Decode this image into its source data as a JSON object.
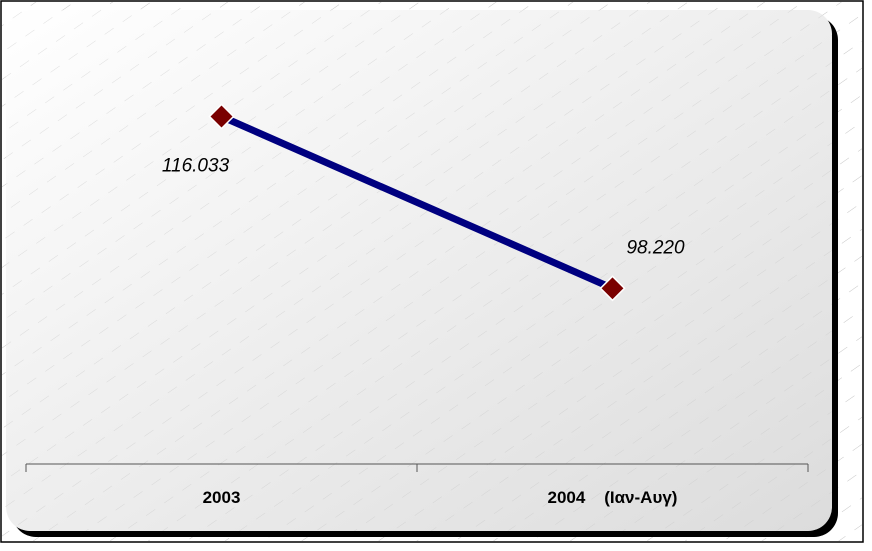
{
  "chart_data": {
    "type": "line",
    "categories": [
      "2003",
      "2004    (Ιαν-Αυγ)"
    ],
    "series": [
      {
        "values": [
          116033,
          98220
        ],
        "labels": [
          "116.033",
          "98.220"
        ],
        "line_color": "#000080",
        "marker_color": "#7a0000"
      }
    ],
    "title": "",
    "xlabel": "",
    "ylabel": "",
    "ylim": [
      80000,
      125000
    ],
    "grid": false,
    "legend": "none"
  }
}
